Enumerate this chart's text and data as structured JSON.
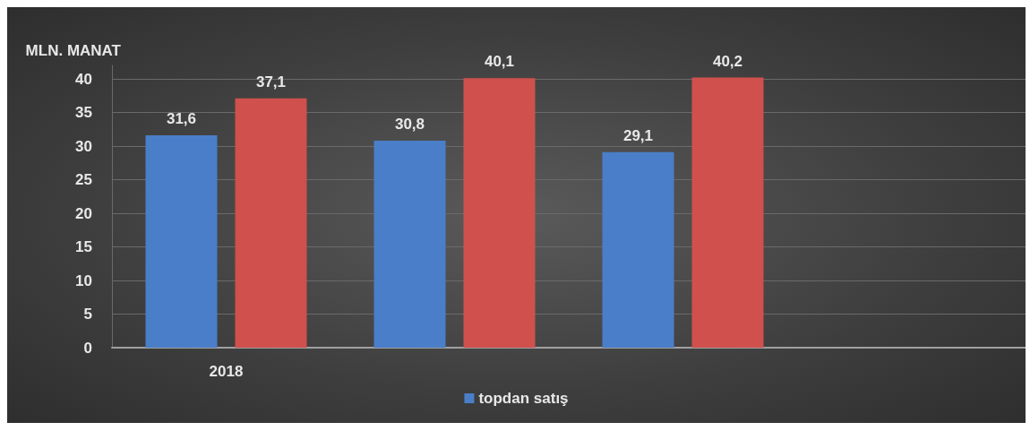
{
  "chart_data": {
    "type": "bar",
    "ylabel": "MLN. MANAT",
    "categories": [
      "2018",
      null,
      null,
      null
    ],
    "series": [
      {
        "name": "topdan satış",
        "color": "#4a7ec8",
        "values": [
          31.6,
          30.8,
          29.1,
          null
        ],
        "value_labels": [
          "31,6",
          "30,8",
          "29,1",
          null
        ]
      },
      {
        "color": "#d0504d",
        "values": [
          37.1,
          40.1,
          40.2,
          null
        ],
        "value_labels": [
          "37,1",
          "40,1",
          "40,2",
          null
        ]
      }
    ],
    "ylim": [
      0,
      42
    ],
    "yticks": [
      0,
      5,
      10,
      15,
      20,
      25,
      30,
      35,
      40
    ],
    "grid": "y",
    "legend": "bottom"
  }
}
